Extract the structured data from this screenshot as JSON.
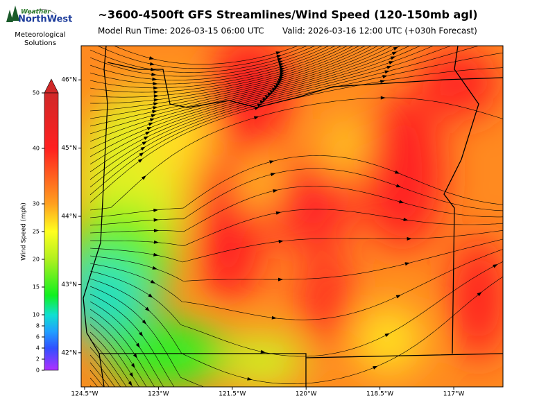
{
  "header": {
    "title": "~3600-4500ft GFS Streamlines/Wind Speed (120-150mb agl)",
    "model_run": "Model Run Time: 2026-03-15 06:00 UTC",
    "valid": "Valid: 2026-03-16 12:00 UTC  (+030h Forecast)"
  },
  "logo": {
    "brand_top": "Weather",
    "brand_main": "NorthWest",
    "line1": "Meteorological",
    "line2": "Solutions"
  },
  "colorbar": {
    "label": "Wind Speed (mph)",
    "lim": [
      0,
      50
    ],
    "ticks": [
      0,
      2,
      4,
      6,
      8,
      10,
      15,
      20,
      25,
      30,
      40,
      50
    ]
  },
  "map": {
    "xlim": [
      -124.57,
      -116.0
    ],
    "ylim": [
      41.5,
      46.5
    ],
    "xticks": [
      {
        "value": -124.5,
        "label": "124.5°W"
      },
      {
        "value": -123,
        "label": "123°W"
      },
      {
        "value": -121.5,
        "label": "121.5°W"
      },
      {
        "value": -120,
        "label": "120°W"
      },
      {
        "value": -118.5,
        "label": "118.5°W"
      },
      {
        "value": -117,
        "label": "117°W"
      }
    ],
    "yticks": [
      {
        "value": 42,
        "label": "42°N"
      },
      {
        "value": 43,
        "label": "43°N"
      },
      {
        "value": 44,
        "label": "44°N"
      },
      {
        "value": 45,
        "label": "45°N"
      },
      {
        "value": 46,
        "label": "46°N"
      }
    ]
  }
}
